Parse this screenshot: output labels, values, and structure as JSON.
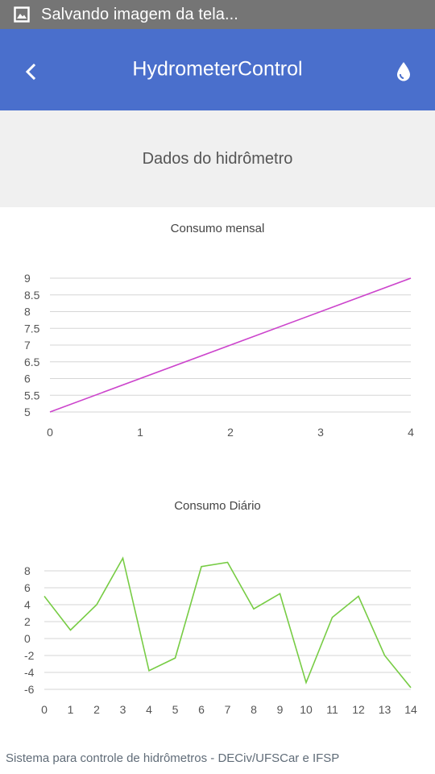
{
  "status_bar": {
    "icon": "image-icon",
    "text": "Salvando imagem da tela..."
  },
  "app_bar": {
    "title": "HydrometerControl",
    "back_icon": "chevron-left-icon",
    "action_icon": "water-drop-icon",
    "color": "#4a6fcc"
  },
  "section": {
    "title": "Dados do hidrômetro"
  },
  "charts": {
    "monthly": {
      "type": "line",
      "title": "Consumo mensal",
      "color": "#cc44cc",
      "xlim": [
        0,
        4
      ],
      "ylim": [
        5,
        9
      ],
      "x_ticks": [
        "0",
        "1",
        "2",
        "3",
        "4"
      ],
      "y_ticks": [
        "5",
        "5.5",
        "6",
        "6.5",
        "7",
        "7.5",
        "8",
        "8.5",
        "9"
      ],
      "x": [
        0,
        4
      ],
      "y": [
        5,
        9
      ]
    },
    "daily": {
      "type": "line",
      "title": "Consumo Diário",
      "color": "#77cc44",
      "xlim": [
        0,
        14
      ],
      "ylim": [
        -6,
        8
      ],
      "x_ticks": [
        "0",
        "1",
        "2",
        "3",
        "4",
        "5",
        "6",
        "7",
        "8",
        "9",
        "10",
        "11",
        "12",
        "13",
        "14"
      ],
      "y_ticks": [
        "-6",
        "-4",
        "-2",
        "0",
        "2",
        "4",
        "6",
        "8"
      ],
      "x": [
        0,
        1,
        2,
        3,
        4,
        5,
        6,
        7,
        8,
        9,
        10,
        11,
        12,
        13,
        14
      ],
      "y": [
        5,
        1,
        4,
        9.5,
        -3.8,
        -2.3,
        8.5,
        9,
        3.5,
        5.3,
        -5.2,
        2.5,
        5,
        -2,
        -5.8
      ]
    }
  },
  "footer": {
    "text": "Sistema para controle de hidrômetros - DECiv/UFSCar e IFSP"
  }
}
